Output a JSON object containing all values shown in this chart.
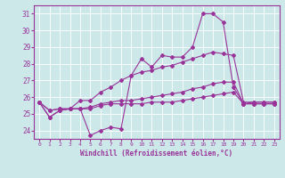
{
  "xlabel": "Windchill (Refroidissement éolien,°C)",
  "x": [
    0,
    1,
    2,
    3,
    4,
    5,
    6,
    7,
    8,
    9,
    10,
    11,
    12,
    13,
    14,
    15,
    16,
    17,
    18,
    19,
    20,
    21,
    22,
    23
  ],
  "series1": [
    25.7,
    24.8,
    25.2,
    25.3,
    25.3,
    23.7,
    24.0,
    24.2,
    24.1,
    27.3,
    28.3,
    27.8,
    28.5,
    28.4,
    28.4,
    29.0,
    31.0,
    31.0,
    30.5,
    26.6,
    25.6,
    25.7,
    25.7,
    25.7
  ],
  "series2": [
    25.7,
    24.8,
    25.2,
    25.3,
    25.8,
    25.8,
    26.3,
    26.6,
    27.0,
    27.3,
    27.5,
    27.6,
    27.8,
    27.9,
    28.1,
    28.3,
    28.5,
    28.7,
    28.6,
    28.5,
    25.7,
    25.7,
    25.7,
    25.7
  ],
  "series3": [
    25.7,
    25.2,
    25.3,
    25.3,
    25.3,
    25.3,
    25.5,
    25.6,
    25.6,
    25.6,
    25.6,
    25.7,
    25.7,
    25.7,
    25.8,
    25.9,
    26.0,
    26.1,
    26.2,
    26.3,
    25.6,
    25.6,
    25.6,
    25.6
  ],
  "series4": [
    25.7,
    25.2,
    25.3,
    25.3,
    25.3,
    25.4,
    25.6,
    25.7,
    25.8,
    25.8,
    25.9,
    26.0,
    26.1,
    26.2,
    26.3,
    26.5,
    26.6,
    26.8,
    26.9,
    26.9,
    25.6,
    25.6,
    25.6,
    25.6
  ],
  "ylim": [
    23.5,
    31.5
  ],
  "yticks": [
    24,
    25,
    26,
    27,
    28,
    29,
    30,
    31
  ],
  "line_color": "#993399",
  "bg_color": "#cce8e8",
  "grid_color": "#ffffff",
  "marker": "D",
  "marker_size": 2,
  "linewidth": 0.8
}
